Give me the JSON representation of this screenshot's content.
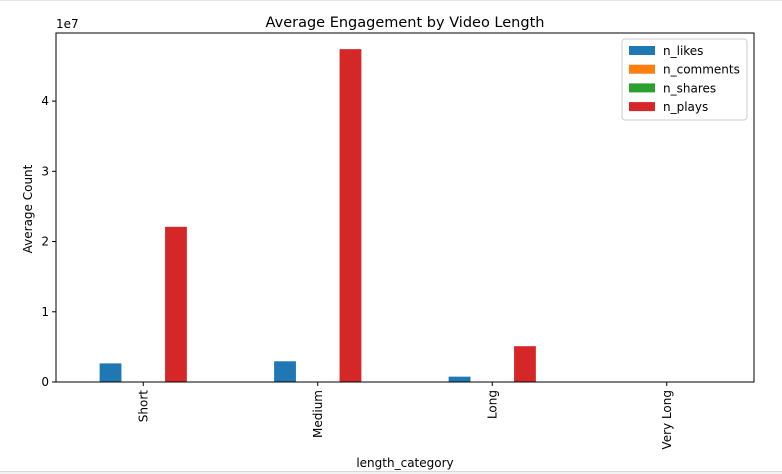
{
  "chart_data": {
    "type": "bar",
    "title": "Average Engagement by Video Length",
    "xlabel": "length_category",
    "ylabel": "Average Count",
    "y_multiplier_label": "1e7",
    "categories": [
      "Short",
      "Medium",
      "Long",
      "Very Long"
    ],
    "series": [
      {
        "name": "n_likes",
        "color": "#1f77b4",
        "values": [
          2650000,
          2950000,
          760000,
          0
        ]
      },
      {
        "name": "n_comments",
        "color": "#ff7f0e",
        "values": [
          25000,
          30000,
          8000,
          0
        ]
      },
      {
        "name": "n_shares",
        "color": "#2ca02c",
        "values": [
          40000,
          50000,
          15000,
          0
        ]
      },
      {
        "name": "n_plays",
        "color": "#d62728",
        "values": [
          22100000,
          47400000,
          5100000,
          0
        ]
      }
    ],
    "ylim": [
      0,
      49700000
    ],
    "yticks": [
      0,
      10000000,
      20000000,
      30000000,
      40000000
    ],
    "ytick_labels": [
      "0",
      "1",
      "2",
      "3",
      "4"
    ],
    "legend_position": "top-right",
    "grid": false
  }
}
